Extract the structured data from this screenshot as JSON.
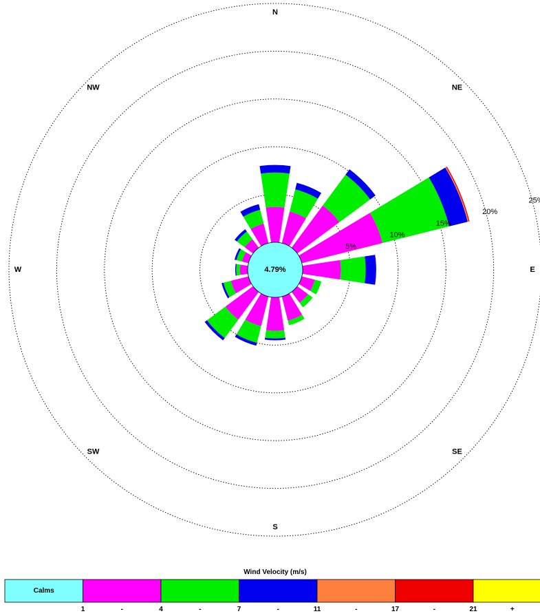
{
  "chart_data": {
    "type": "windrose",
    "center_label": "4.79%",
    "directions": [
      "N",
      "NNE",
      "NE",
      "ENE",
      "E",
      "ESE",
      "SE",
      "SSE",
      "S",
      "SSW",
      "SW",
      "WSW",
      "W",
      "WNW",
      "NW",
      "NNW"
    ],
    "compass_labels": [
      {
        "text": "N",
        "angle": 0
      },
      {
        "text": "NE",
        "angle": 45
      },
      {
        "text": "E",
        "angle": 90
      },
      {
        "text": "SE",
        "angle": 135
      },
      {
        "text": "S",
        "angle": 180
      },
      {
        "text": "SW",
        "angle": 225
      },
      {
        "text": "W",
        "angle": 270
      },
      {
        "text": "NW",
        "angle": 315
      }
    ],
    "rings": [
      5,
      10,
      15,
      20,
      25
    ],
    "ring_labels": [
      "5%",
      "10%",
      "15%",
      "20%",
      "25%"
    ],
    "radial_max": 25,
    "calm_pct": 4.79,
    "series": [
      {
        "name": "1 - 4",
        "color": "#ff00ff",
        "values": [
          3.7,
          3.4,
          5.5,
          8.7,
          4.0,
          1.4,
          1.4,
          2.6,
          3.5,
          3.2,
          3.6,
          1.9,
          0.8,
          0.7,
          1.1,
          2.1
        ]
      },
      {
        "name": "4 - 7",
        "color": "#00ee00",
        "values": [
          3.6,
          2.4,
          4.0,
          7.2,
          2.6,
          0.7,
          0.6,
          0.5,
          0.8,
          1.8,
          2.4,
          0.8,
          0.4,
          0.6,
          1.0,
          1.5
        ]
      },
      {
        "name": "7 - 11",
        "color": "#0000ee",
        "values": [
          0.8,
          0.7,
          0.7,
          2.0,
          1.1,
          0.0,
          0.0,
          0.0,
          0.2,
          0.3,
          0.3,
          0.2,
          0.1,
          0.2,
          0.3,
          0.6
        ]
      },
      {
        "name": "11 - 17",
        "color": "#ff7f3f",
        "values": [
          0.0,
          0.0,
          0.0,
          0.1,
          0.0,
          0.0,
          0.0,
          0.0,
          0.0,
          0.0,
          0.0,
          0.0,
          0.0,
          0.0,
          0.0,
          0.0
        ]
      },
      {
        "name": "17 - 21",
        "color": "#ee0000",
        "values": [
          0.0,
          0.0,
          0.0,
          0.1,
          0.0,
          0.0,
          0.0,
          0.0,
          0.0,
          0.0,
          0.0,
          0.0,
          0.0,
          0.0,
          0.0,
          0.0
        ]
      },
      {
        "name": "21 +",
        "color": "#ffff00",
        "values": [
          0,
          0,
          0,
          0,
          0,
          0,
          0,
          0,
          0,
          0,
          0,
          0,
          0,
          0,
          0,
          0
        ]
      }
    ],
    "legend": {
      "title": "Wind Velocity (m/s)",
      "calm_label": "Calms",
      "calm_color": "#7fffff",
      "colors": [
        "#ff00ff",
        "#00ee00",
        "#0000ee",
        "#ff7f3f",
        "#ee0000",
        "#ffff00"
      ],
      "ticks": [
        "1",
        "-",
        "4",
        "-",
        "7",
        "-",
        "11",
        "-",
        "17",
        "-",
        "21",
        "+"
      ]
    }
  }
}
